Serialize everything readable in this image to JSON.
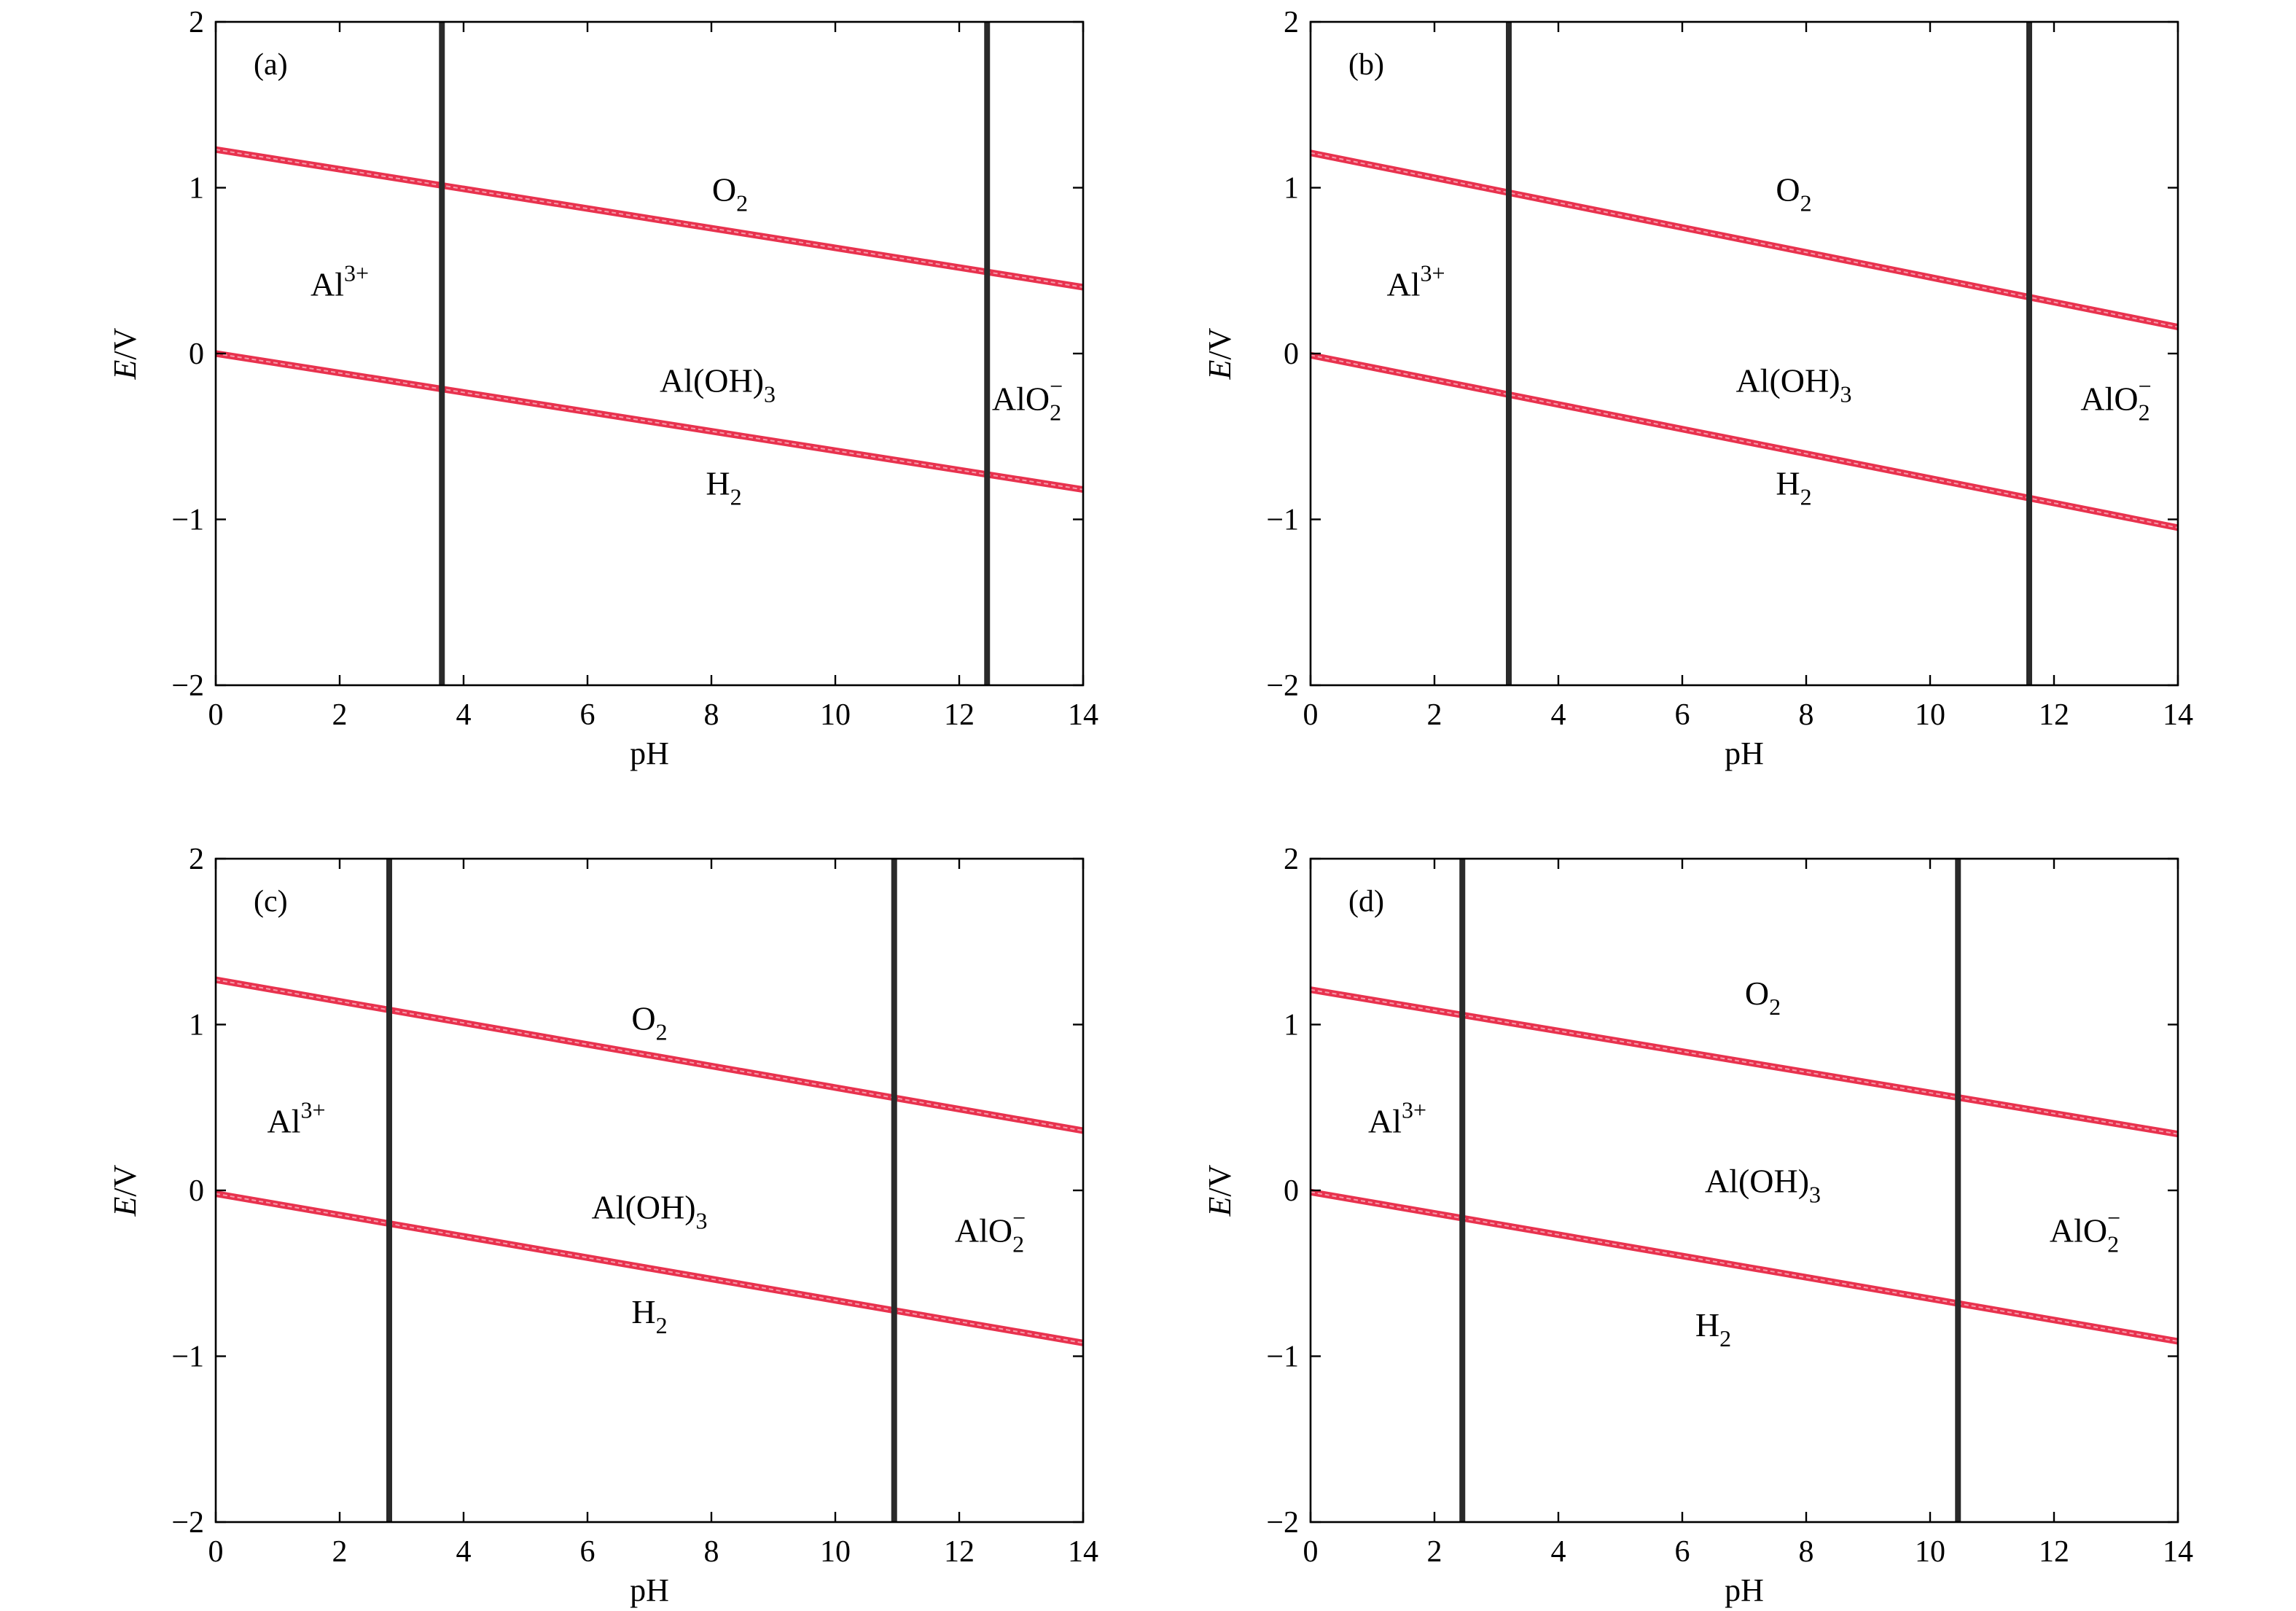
{
  "chart_data": [
    {
      "type": "line",
      "panel_label": "(a)",
      "xlabel": "pH",
      "ylabel_italic": "E",
      "ylabel_rest": "/V",
      "xlim": [
        0,
        14
      ],
      "ylim": [
        -2,
        2
      ],
      "xticks": [
        0,
        2,
        4,
        6,
        8,
        10,
        12,
        14
      ],
      "yticks": [
        -2,
        -1,
        0,
        1,
        2
      ],
      "xtick_labels": [
        "0",
        "2",
        "4",
        "6",
        "8",
        "10",
        "12",
        "14"
      ],
      "ytick_labels": [
        "−2",
        "−1",
        "0",
        "1",
        "2"
      ],
      "o2_line": {
        "x": [
          0,
          14
        ],
        "y": [
          1.23,
          0.4
        ]
      },
      "h2_line": {
        "x": [
          0,
          14
        ],
        "y": [
          0.0,
          -0.82
        ]
      },
      "boundaries_ph": [
        3.65,
        12.45
      ],
      "labels": {
        "al3": {
          "base": "Al",
          "sup": "3+",
          "pos": [
            2.0,
            0.35
          ]
        },
        "o2": {
          "base": "O",
          "sub": "2",
          "pos": [
            8.3,
            0.92
          ]
        },
        "aloh3": {
          "base": "Al(OH)",
          "sub": "3",
          "pos": [
            8.1,
            -0.23
          ]
        },
        "alo2": {
          "base": "AlO",
          "sub": "2",
          "sup": "−",
          "pos": [
            13.1,
            -0.34
          ]
        },
        "h2": {
          "base": "H",
          "sub": "2",
          "pos": [
            8.2,
            -0.85
          ]
        }
      }
    },
    {
      "type": "line",
      "panel_label": "(b)",
      "xlabel": "pH",
      "ylabel_italic": "E",
      "ylabel_rest": "/V",
      "xlim": [
        0,
        14
      ],
      "ylim": [
        -2,
        2
      ],
      "xticks": [
        0,
        2,
        4,
        6,
        8,
        10,
        12,
        14
      ],
      "yticks": [
        -2,
        -1,
        0,
        1,
        2
      ],
      "xtick_labels": [
        "0",
        "2",
        "4",
        "6",
        "8",
        "10",
        "12",
        "14"
      ],
      "ytick_labels": [
        "−2",
        "−1",
        "0",
        "1",
        "2"
      ],
      "o2_line": {
        "x": [
          0,
          14
        ],
        "y": [
          1.21,
          0.16
        ]
      },
      "h2_line": {
        "x": [
          0,
          14
        ],
        "y": [
          -0.01,
          -1.05
        ]
      },
      "boundaries_ph": [
        3.2,
        11.6
      ],
      "labels": {
        "al3": {
          "base": "Al",
          "sup": "3+",
          "pos": [
            1.7,
            0.35
          ]
        },
        "o2": {
          "base": "O",
          "sub": "2",
          "pos": [
            7.8,
            0.92
          ]
        },
        "aloh3": {
          "base": "Al(OH)",
          "sub": "3",
          "pos": [
            7.8,
            -0.23
          ]
        },
        "alo2": {
          "base": "AlO",
          "sub": "2",
          "sup": "−",
          "pos": [
            13.0,
            -0.34
          ]
        },
        "h2": {
          "base": "H",
          "sub": "2",
          "pos": [
            7.8,
            -0.85
          ]
        }
      }
    },
    {
      "type": "line",
      "panel_label": "(c)",
      "xlabel": "pH",
      "ylabel_italic": "E",
      "ylabel_rest": "/V",
      "xlim": [
        0,
        14
      ],
      "ylim": [
        -2,
        2
      ],
      "xticks": [
        0,
        2,
        4,
        6,
        8,
        10,
        12,
        14
      ],
      "yticks": [
        -2,
        -1,
        0,
        1,
        2
      ],
      "xtick_labels": [
        "0",
        "2",
        "4",
        "6",
        "8",
        "10",
        "12",
        "14"
      ],
      "ytick_labels": [
        "−2",
        "−1",
        "0",
        "1",
        "2"
      ],
      "o2_line": {
        "x": [
          0,
          14
        ],
        "y": [
          1.27,
          0.36
        ]
      },
      "h2_line": {
        "x": [
          0,
          14
        ],
        "y": [
          -0.02,
          -0.92
        ]
      },
      "boundaries_ph": [
        2.8,
        10.95
      ],
      "labels": {
        "al3": {
          "base": "Al",
          "sup": "3+",
          "pos": [
            1.3,
            0.35
          ]
        },
        "o2": {
          "base": "O",
          "sub": "2",
          "pos": [
            7.0,
            0.97
          ]
        },
        "aloh3": {
          "base": "Al(OH)",
          "sub": "3",
          "pos": [
            7.0,
            -0.17
          ]
        },
        "alo2": {
          "base": "AlO",
          "sub": "2",
          "sup": "−",
          "pos": [
            12.5,
            -0.31
          ]
        },
        "h2": {
          "base": "H",
          "sub": "2",
          "pos": [
            7.0,
            -0.8
          ]
        }
      }
    },
    {
      "type": "line",
      "panel_label": "(d)",
      "xlabel": "pH",
      "ylabel_italic": "E",
      "ylabel_rest": "/V",
      "xlim": [
        0,
        14
      ],
      "ylim": [
        -2,
        2
      ],
      "xticks": [
        0,
        2,
        4,
        6,
        8,
        10,
        12,
        14
      ],
      "yticks": [
        -2,
        -1,
        0,
        1,
        2
      ],
      "xtick_labels": [
        "0",
        "2",
        "4",
        "6",
        "8",
        "10",
        "12",
        "14"
      ],
      "ytick_labels": [
        "−2",
        "−1",
        "0",
        "1",
        "2"
      ],
      "o2_line": {
        "x": [
          0,
          14
        ],
        "y": [
          1.21,
          0.34
        ]
      },
      "h2_line": {
        "x": [
          0,
          14
        ],
        "y": [
          -0.01,
          -0.91
        ]
      },
      "boundaries_ph": [
        2.45,
        10.45
      ],
      "labels": {
        "al3": {
          "base": "Al",
          "sup": "3+",
          "pos": [
            1.4,
            0.35
          ]
        },
        "o2": {
          "base": "O",
          "sub": "2",
          "pos": [
            7.3,
            1.12
          ]
        },
        "aloh3": {
          "base": "Al(OH)",
          "sub": "3",
          "pos": [
            7.3,
            -0.01
          ]
        },
        "alo2": {
          "base": "AlO",
          "sub": "2",
          "sup": "−",
          "pos": [
            12.5,
            -0.31
          ]
        },
        "h2": {
          "base": "H",
          "sub": "2",
          "pos": [
            6.5,
            -0.88
          ]
        }
      }
    }
  ]
}
